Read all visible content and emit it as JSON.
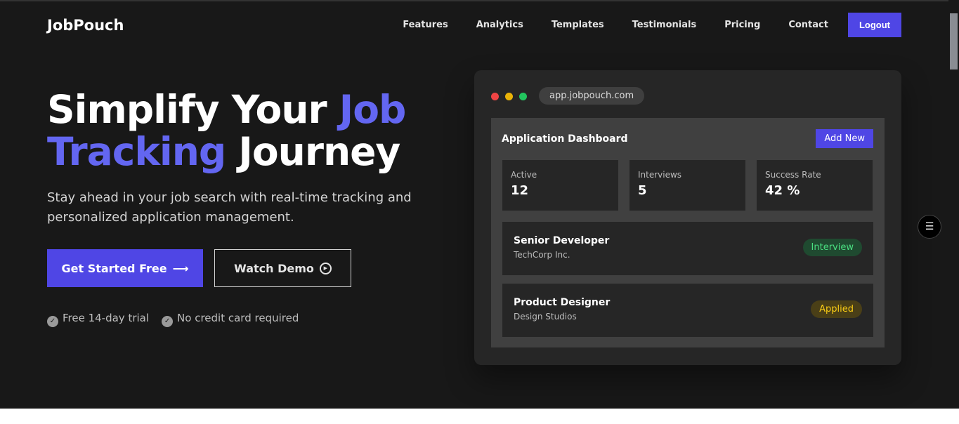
{
  "brand": "JobPouch",
  "nav": [
    "Features",
    "Analytics",
    "Templates",
    "Testimonials",
    "Pricing",
    "Contact"
  ],
  "logout": "Logout",
  "hero": {
    "t1": "Simplify Your ",
    "t2": "Job",
    "t3": "Tracking",
    "t4": " Journey",
    "sub": "Stay ahead in your job search with real-time tracking and personalized application management.",
    "cta": "Get Started Free",
    "demo": "Watch Demo",
    "checks": [
      "Free 14-day trial",
      "No credit card required"
    ]
  },
  "mock": {
    "url": "app.jobpouch.com",
    "title": "Application Dashboard",
    "add": "Add New",
    "stats": [
      {
        "label": "Active",
        "value": "12"
      },
      {
        "label": "Interviews",
        "value": "5"
      },
      {
        "label": "Success Rate",
        "value": "42 %"
      }
    ],
    "jobs": [
      {
        "title": "Senior Developer",
        "company": "TechCorp Inc.",
        "status": "Interview"
      },
      {
        "title": "Product Designer",
        "company": "Design Studios",
        "status": "Applied"
      }
    ]
  },
  "colors": {
    "accent": "#4f46e5",
    "interview": "#4ade80",
    "applied": "#facc15"
  }
}
